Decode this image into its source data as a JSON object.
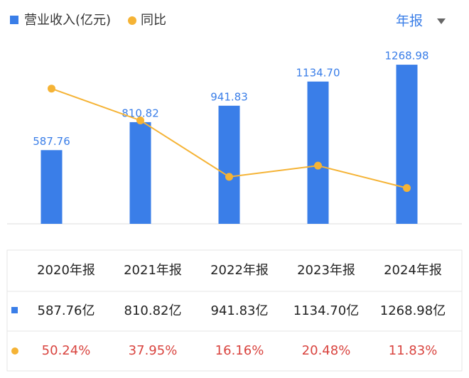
{
  "chart_data": {
    "type": "bar_line",
    "categories": [
      "2020年报",
      "2021年报",
      "2022年报",
      "2023年报",
      "2024年报"
    ],
    "series": [
      {
        "name": "营业收入(亿元)",
        "color": "#3a7ee8",
        "type": "bar",
        "values": [
          587.76,
          810.82,
          941.83,
          1134.7,
          1268.98
        ],
        "value_labels": [
          "587.76",
          "810.82",
          "941.83",
          "1134.70",
          "1268.98"
        ]
      },
      {
        "name": "同比",
        "color": "#f5b335",
        "type": "line",
        "axis": "y2",
        "values": [
          50.24,
          37.95,
          16.16,
          20.48,
          11.83
        ]
      }
    ],
    "ylim": [
      0,
      1445
    ],
    "y2lim": [
      -2,
      68
    ]
  },
  "period_selector": "年报",
  "table": {
    "rows": [
      [
        "587.76亿",
        "810.82亿",
        "941.83亿",
        "1134.70亿",
        "1268.98亿"
      ],
      [
        "50.24%",
        "37.95%",
        "16.16%",
        "20.48%",
        "11.83%"
      ]
    ]
  }
}
